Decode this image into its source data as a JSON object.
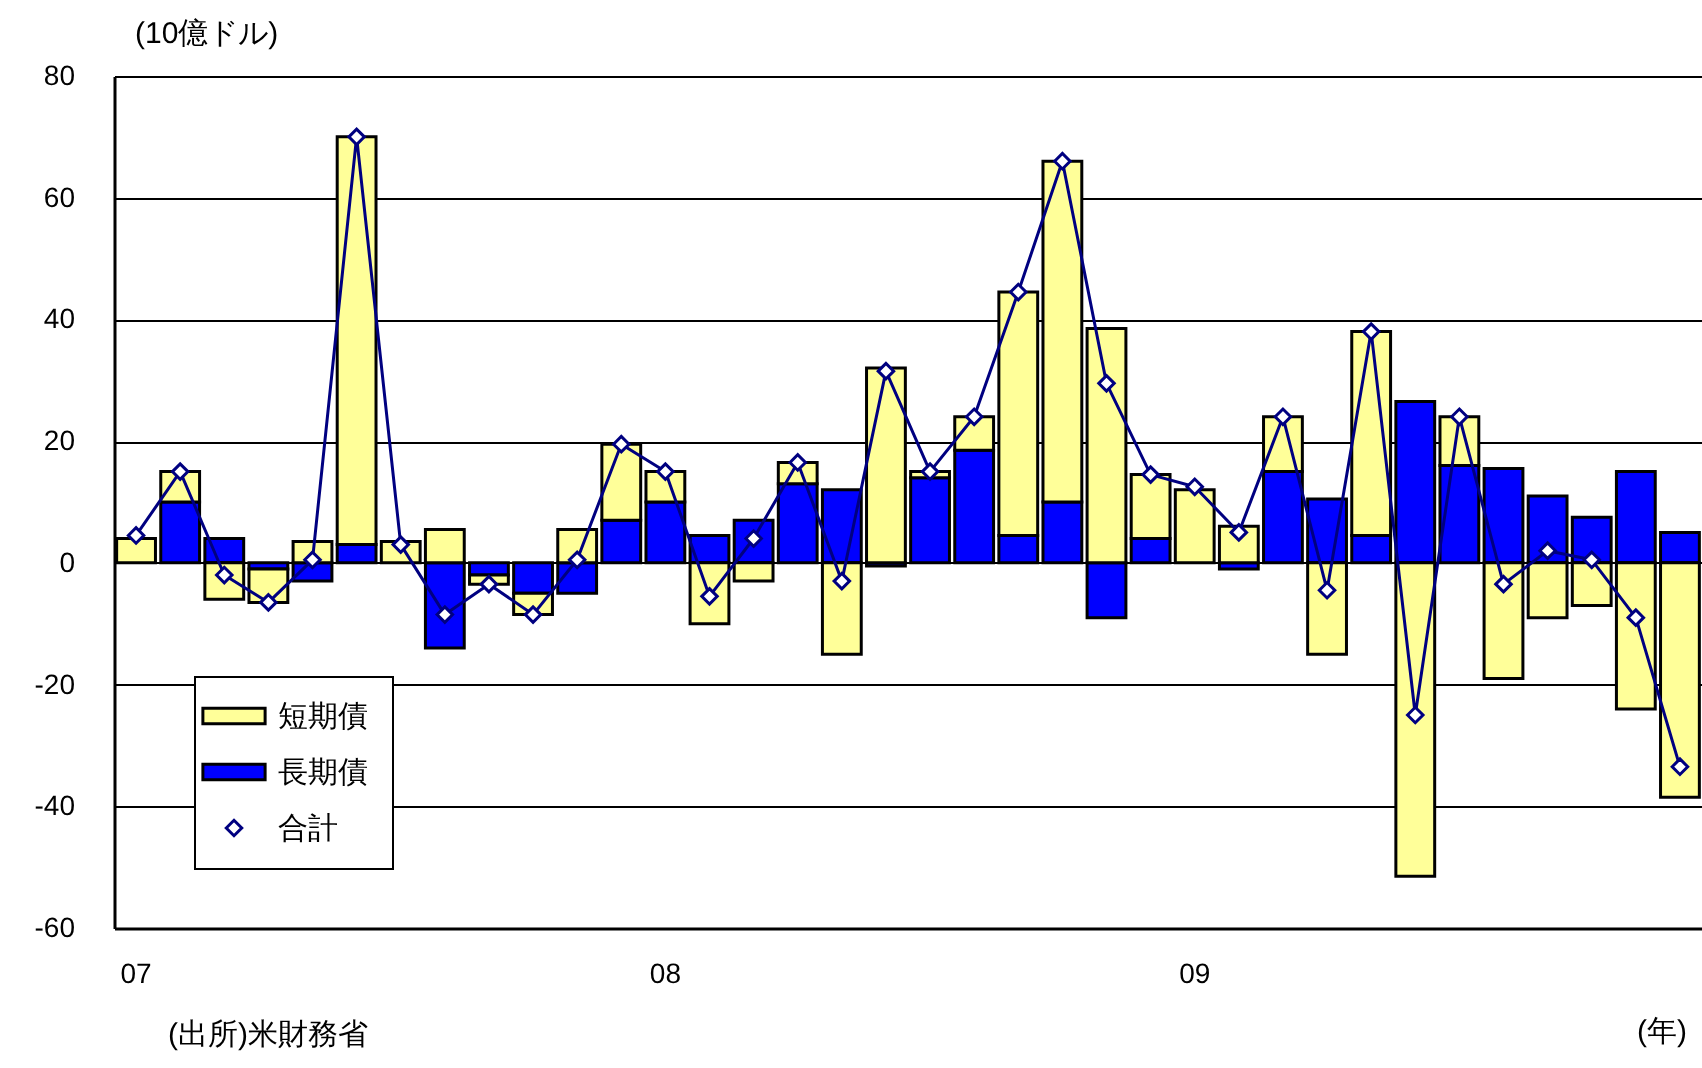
{
  "chart_data": {
    "type": "bar",
    "stacked": true,
    "ylabel": "(10億ドル)",
    "xlabel": "(年)",
    "annotations": [
      "(出所)米財務省"
    ],
    "categories": [
      "07",
      null,
      null,
      null,
      null,
      null,
      null,
      null,
      null,
      null,
      null,
      null,
      "08",
      null,
      null,
      null,
      null,
      null,
      null,
      null,
      null,
      null,
      null,
      null,
      "09",
      null,
      null,
      null,
      null,
      null,
      null,
      null,
      null,
      null,
      null,
      null
    ],
    "series": [
      {
        "name": "長期債",
        "color": "#0000ff",
        "values": [
          null,
          10,
          4,
          -1,
          -3,
          3,
          null,
          -14,
          -2,
          -5,
          -5,
          7,
          10,
          4.5,
          7,
          13,
          12,
          -0.5,
          14,
          18.5,
          4.5,
          10,
          -9,
          4,
          null,
          -1,
          15,
          10.5,
          4.5,
          26.5,
          16,
          15.5,
          11,
          7.5,
          15,
          5
        ]
      },
      {
        "name": "短期債",
        "color": "#ffff99",
        "values": [
          4,
          5,
          -6,
          -5.5,
          3.5,
          67,
          3.5,
          5.5,
          -1.5,
          -3.5,
          5.5,
          12.5,
          5,
          -10,
          -3,
          3.5,
          -15,
          32,
          1,
          5.5,
          40,
          56,
          38.5,
          10.5,
          12,
          6,
          9,
          -15,
          33.5,
          -51.5,
          8,
          -19,
          -9,
          -7,
          -24,
          -38.5
        ]
      },
      {
        "name": "合計",
        "type": "line",
        "color": "#000080",
        "marker": "diamond",
        "values": [
          4.5,
          15,
          -2,
          -6.5,
          0.5,
          70,
          3,
          -8.5,
          -3.5,
          -8.5,
          0.5,
          19.5,
          15,
          -5.5,
          4,
          16.5,
          -3,
          31.5,
          15,
          24,
          44.5,
          66,
          29.5,
          14.5,
          12.5,
          5,
          24,
          -4.5,
          38,
          -25,
          24,
          -3.5,
          2,
          0.5,
          -9,
          -33.5
        ]
      }
    ],
    "ylim": [
      -60,
      80
    ],
    "yticks": [
      -60,
      -40,
      -20,
      0,
      20,
      40,
      60,
      80
    ],
    "grid": "y",
    "legend": "bottom left"
  }
}
